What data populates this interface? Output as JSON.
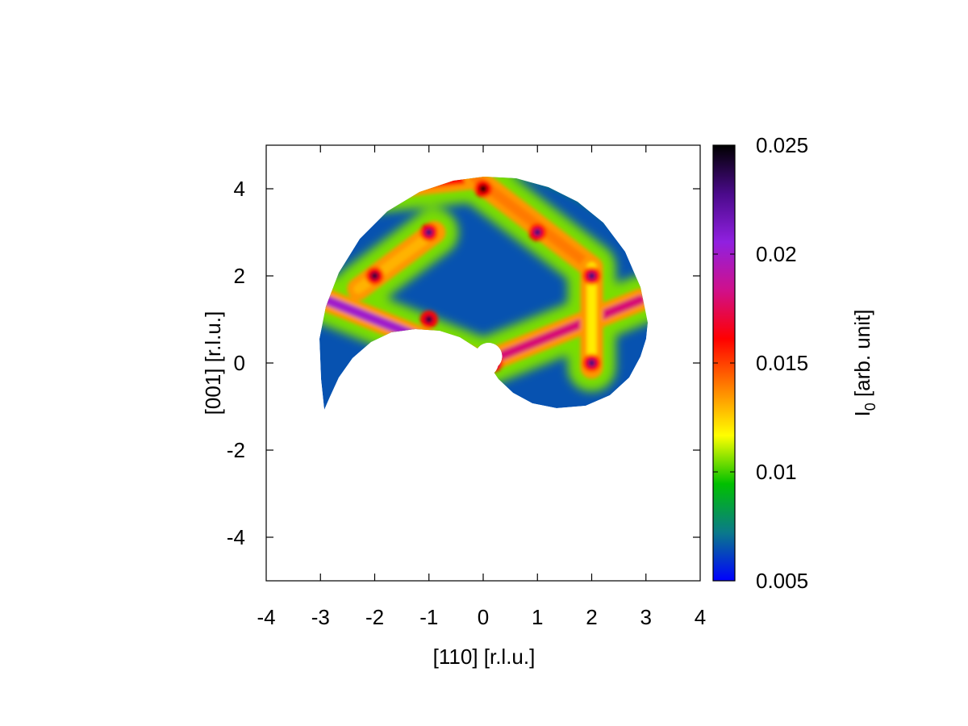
{
  "chart_data": {
    "type": "heatmap",
    "title": "",
    "xlabel": "[110] [r.l.u.]",
    "ylabel": "[001] [r.l.u.]",
    "xlim": [
      -4,
      4
    ],
    "ylim": [
      -5,
      5
    ],
    "xticks": [
      -4,
      -3,
      -2,
      -1,
      0,
      1,
      2,
      3,
      4
    ],
    "xtick_labels": [
      "-4",
      "-3",
      "-2",
      "-1",
      "0",
      "1",
      "2",
      "3",
      "4"
    ],
    "yticks": [
      -4,
      -2,
      0,
      2,
      4
    ],
    "ytick_labels": [
      "-4",
      "-2",
      "0",
      "2",
      "4"
    ],
    "colorbar": {
      "label_main": "I",
      "label_sub": "0",
      "label_rest": " [arb. unit]",
      "range": [
        0.005,
        0.025
      ],
      "ticks": [
        0.005,
        0.01,
        0.015,
        0.02,
        0.025
      ],
      "tick_labels": [
        "0.005",
        "0.01",
        "0.015",
        "0.02",
        "0.025"
      ],
      "colors": [
        "#0000ff",
        "#0a7a8a",
        "#00c000",
        "#ffff00",
        "#ff8000",
        "#ff0000",
        "#d0108a",
        "#9020e0",
        "#4a0a8a",
        "#000000"
      ]
    },
    "coverage": {
      "shape": "partial disk with crescent cut-out, measured region of reciprocal space",
      "outer_radius": 4.25,
      "hole_center": [
        0,
        0
      ],
      "hole_radius": 0.25
    },
    "features": {
      "background_level": 0.0065,
      "diagonal_rods": [
        {
          "from": [
            0,
            0
          ],
          "to": [
            -2.9,
            1.45
          ],
          "level": 0.02
        },
        {
          "from": [
            0,
            0
          ],
          "to": [
            2.9,
            1.45
          ],
          "level": 0.018
        },
        {
          "from": [
            -2.0,
            4.0
          ],
          "to": [
            -0.15,
            4.25
          ],
          "level": 0.016
        },
        {
          "from": [
            -0.15,
            4.25
          ],
          "to": [
            2.0,
            2.2
          ],
          "level": 0.014
        },
        {
          "from": [
            -0.9,
            3.0
          ],
          "to": [
            -2.3,
            1.7
          ],
          "level": 0.013
        },
        {
          "from": [
            2.0,
            2.2
          ],
          "to": [
            2.0,
            -0.1
          ],
          "level": 0.012
        }
      ],
      "bragg_peaks": [
        {
          "x": -2.0,
          "y": 2.0,
          "level": 0.024
        },
        {
          "x": -1.0,
          "y": 1.0,
          "level": 0.024
        },
        {
          "x": 0.0,
          "y": 4.0,
          "level": 0.025
        },
        {
          "x": -1.0,
          "y": 3.0,
          "level": 0.023
        },
        {
          "x": 1.0,
          "y": 3.0,
          "level": 0.023
        },
        {
          "x": 2.0,
          "y": 2.0,
          "level": 0.023
        },
        {
          "x": 2.0,
          "y": 0.0,
          "level": 0.023
        },
        {
          "x": 0.2,
          "y": 0.0,
          "level": 0.022
        }
      ]
    }
  }
}
